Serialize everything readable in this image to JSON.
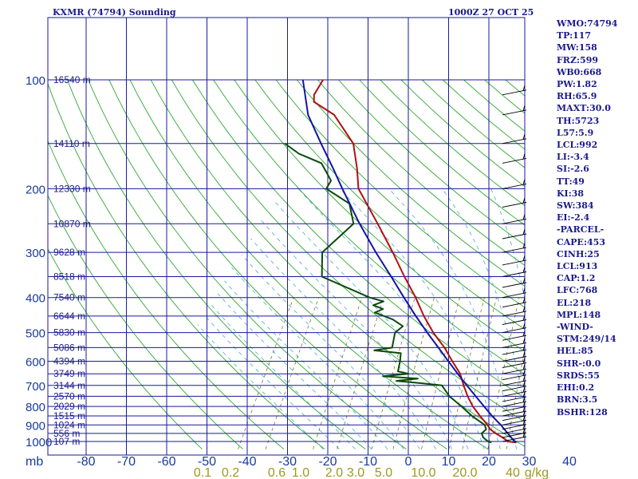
{
  "header": {
    "station": "KXMR (74794) Sounding",
    "datetime": "1000Z 27 OCT 25"
  },
  "indices": [
    "WMO:74794",
    "TP:117",
    "MW:158",
    "FRZ:599",
    "WB0:668",
    "PW:1.82",
    "RH:65.9",
    "MAXT:30.0",
    "TH:5723",
    "L57:5.9",
    "LCL:992",
    "LI:-3.4",
    "SI:-2.6",
    "TT:49",
    "KI:38",
    "SW:384",
    "EI:-2.4",
    "-PARCEL-",
    "CAPE:453",
    "CINH:25",
    "LCL:913",
    "CAP:1.2",
    "LFC:768",
    "EL:218",
    "MPL:148",
    "-WIND-",
    "STM:249/14",
    "HEL:85",
    "SHR-:0.0",
    "SRDS:55",
    "EHI:0.2",
    "BRN:3.5",
    "BSHR:128"
  ],
  "chart_data": {
    "type": "line",
    "title": "KXMR (74794) Sounding",
    "pressure_label": "mb",
    "pressure_ticks": [
      "100",
      "200",
      "300",
      "400",
      "500",
      "600",
      "700",
      "800",
      "900",
      "1000"
    ],
    "pressure_tick_values": [
      100,
      200,
      300,
      400,
      500,
      600,
      700,
      800,
      900,
      1000
    ],
    "temperature_ticks": [
      "-80",
      "-70",
      "-60",
      "-50",
      "-40",
      "-30",
      "-20",
      "-10",
      "0",
      "10",
      "20",
      "30",
      "40"
    ],
    "temperature_tick_values": [
      -80,
      -70,
      -60,
      -50,
      -40,
      -30,
      -20,
      -10,
      0,
      10,
      20,
      30,
      40
    ],
    "mixing_ratio_ticks": [
      "0.1",
      "0.2",
      "0.6",
      "1.0",
      "2.0",
      "3.0",
      "5.0",
      "10.0",
      "20.0",
      "40",
      "g/kg"
    ],
    "height_labels": [
      {
        "p": 100,
        "label": "16540 m"
      },
      {
        "p": 150,
        "label": "14110 m"
      },
      {
        "p": 200,
        "label": "12330 m"
      },
      {
        "p": 250,
        "label": "10870 m"
      },
      {
        "p": 300,
        "label": "9628 m"
      },
      {
        "p": 350,
        "label": "8518 m"
      },
      {
        "p": 400,
        "label": "7540 m"
      },
      {
        "p": 450,
        "label": "6644 m"
      },
      {
        "p": 500,
        "label": "5830 m"
      },
      {
        "p": 550,
        "label": "5086 m"
      },
      {
        "p": 600,
        "label": "4394 m"
      },
      {
        "p": 650,
        "label": "3749 m"
      },
      {
        "p": 700,
        "label": "3144 m"
      },
      {
        "p": 750,
        "label": "2570 m"
      },
      {
        "p": 800,
        "label": "2029 m"
      },
      {
        "p": 850,
        "label": "1515 m"
      },
      {
        "p": 900,
        "label": "1024 m"
      },
      {
        "p": 950,
        "label": "556 m"
      },
      {
        "p": 1000,
        "label": "107 m"
      }
    ],
    "series": [
      {
        "color": "#b01010",
        "values": [
          [
            1006,
            26.8
          ],
          [
            1000,
            24.8
          ],
          [
            975,
            22.8
          ],
          [
            950,
            20.5
          ],
          [
            925,
            18.5
          ],
          [
            900,
            17.2
          ],
          [
            850,
            14
          ],
          [
            800,
            10.8
          ],
          [
            750,
            8
          ],
          [
            700,
            5.4
          ],
          [
            650,
            2.8
          ],
          [
            600,
            -1
          ],
          [
            550,
            -5
          ],
          [
            500,
            -10
          ],
          [
            450,
            -14.8
          ],
          [
            400,
            -19.6
          ],
          [
            350,
            -25.5
          ],
          [
            300,
            -32
          ],
          [
            250,
            -40
          ],
          [
            200,
            -50
          ],
          [
            175,
            -53.5
          ],
          [
            150,
            -58
          ],
          [
            125,
            -67
          ],
          [
            115,
            -74
          ],
          [
            110,
            -75
          ],
          [
            100,
            -75
          ]
        ]
      },
      {
        "color": "#0a4a0a",
        "values": [
          [
            1006,
            20.8
          ],
          [
            1000,
            19.8
          ],
          [
            975,
            18
          ],
          [
            950,
            17
          ],
          [
            925,
            17.5
          ],
          [
            900,
            16.5
          ],
          [
            850,
            12
          ],
          [
            800,
            8
          ],
          [
            750,
            3.5
          ],
          [
            700,
            0
          ],
          [
            690,
            -5.5
          ],
          [
            680,
            -12
          ],
          [
            670,
            -7
          ],
          [
            660,
            -16
          ],
          [
            650,
            -10
          ],
          [
            640,
            -13
          ],
          [
            600,
            -14
          ],
          [
            570,
            -15
          ],
          [
            560,
            -22
          ],
          [
            550,
            -18
          ],
          [
            500,
            -19.5
          ],
          [
            480,
            -18.5
          ],
          [
            460,
            -22
          ],
          [
            440,
            -27.5
          ],
          [
            430,
            -26
          ],
          [
            420,
            -29
          ],
          [
            410,
            -27
          ],
          [
            400,
            -31
          ],
          [
            350,
            -46
          ],
          [
            300,
            -49.5
          ],
          [
            250,
            -46
          ],
          [
            220,
            -50
          ],
          [
            200,
            -58
          ],
          [
            190,
            -58
          ],
          [
            170,
            -63
          ],
          [
            160,
            -70
          ],
          [
            150,
            -75
          ]
        ]
      },
      {
        "color": "#1414a0",
        "values": [
          [
            1006,
            27
          ],
          [
            1000,
            26.4
          ],
          [
            950,
            23.5
          ],
          [
            900,
            20.5
          ],
          [
            850,
            17
          ],
          [
            800,
            13.6
          ],
          [
            750,
            10
          ],
          [
            700,
            6.2
          ],
          [
            650,
            2.2
          ],
          [
            600,
            -2
          ],
          [
            550,
            -6.5
          ],
          [
            500,
            -11.5
          ],
          [
            450,
            -16.8
          ],
          [
            400,
            -22.5
          ],
          [
            350,
            -28.8
          ],
          [
            300,
            -36.2
          ],
          [
            250,
            -44.5
          ],
          [
            200,
            -54
          ],
          [
            175,
            -59.5
          ],
          [
            150,
            -66
          ],
          [
            125,
            -73.5
          ],
          [
            100,
            -80
          ]
        ]
      }
    ],
    "grid": true
  }
}
